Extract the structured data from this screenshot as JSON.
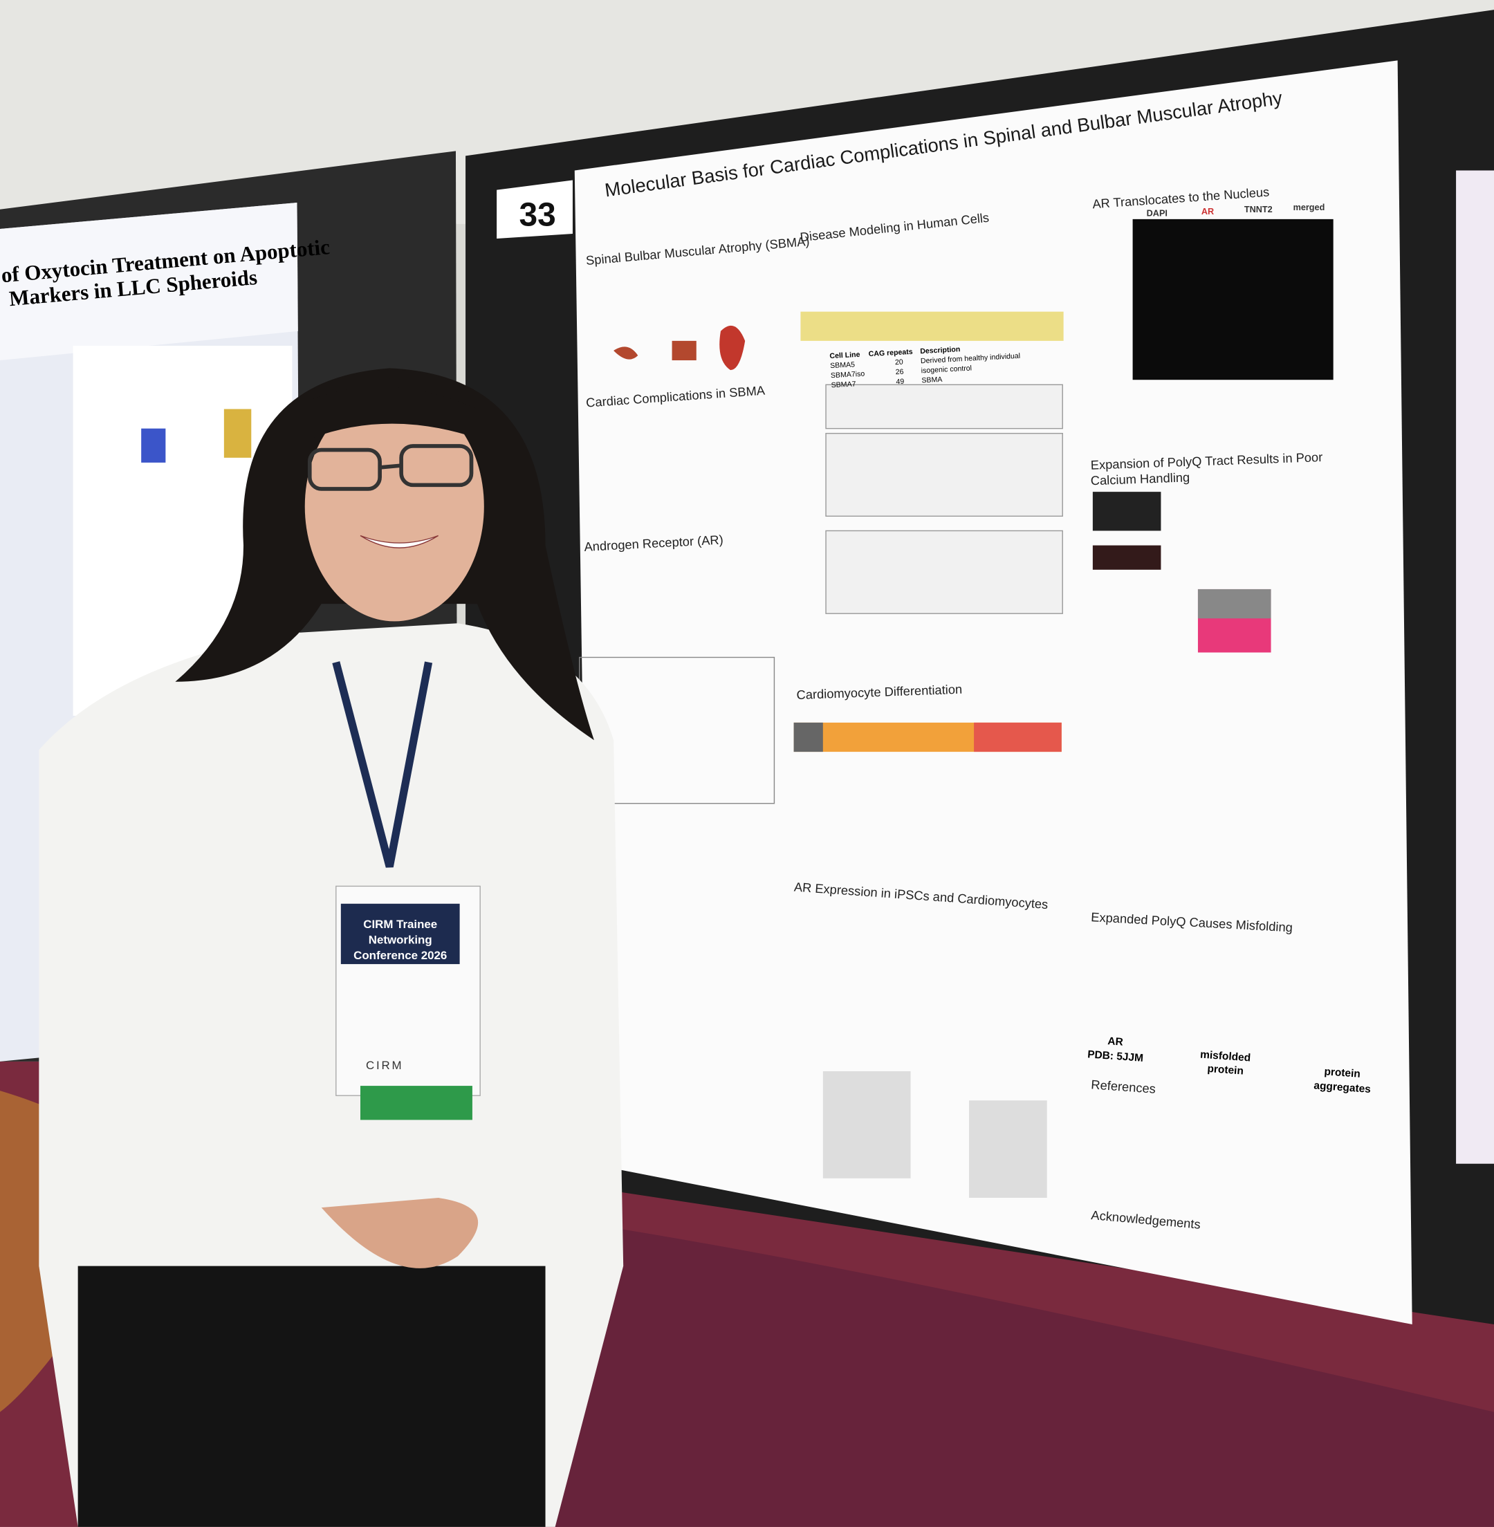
{
  "poster_number": "33",
  "poster": {
    "title": "Molecular Basis for Cardiac Complications in Spinal and Bulbar Muscular Atrophy",
    "sections": [
      "Spinal Bulbar Muscular Atrophy (SBMA)",
      "Cardiac Complications in SBMA",
      "Androgen Receptor (AR)",
      "Disease Modeling in Human Cells",
      "Cardiomyocyte Differentiation",
      "AR Expression in iPSCs and Cardiomyocytes",
      "AR Translocates to the Nucleus",
      "Expansion of PolyQ Tract Results in Poor",
      "Calcium Handling",
      "Expanded PolyQ Causes Misfolding",
      "References",
      "Acknowledgements"
    ],
    "channels": [
      "DAPI",
      "AR",
      "TNNT2",
      "merged"
    ],
    "table": {
      "header": [
        "Cell Line",
        "CAG repeats",
        "Description"
      ],
      "rows": [
        [
          "SBMA5",
          20,
          "Derived from healthy individual"
        ],
        [
          "SBMA7iso",
          26,
          "isogenic control"
        ],
        [
          "SBMA7",
          49,
          "SBMA"
        ]
      ]
    },
    "misfolding_labels": [
      "AR",
      "PDB: 5JJM",
      "misfolded",
      "protein",
      "protein",
      "aggregates"
    ]
  },
  "left_poster": {
    "title_lines": [
      "of Oxytocin Treatment on Apoptotic",
      "Markers in LLC Spheroids"
    ]
  },
  "badge": {
    "lines": [
      "CIRM Trainee",
      "Networking",
      "Conference 2026"
    ],
    "logo": "CIRM"
  }
}
